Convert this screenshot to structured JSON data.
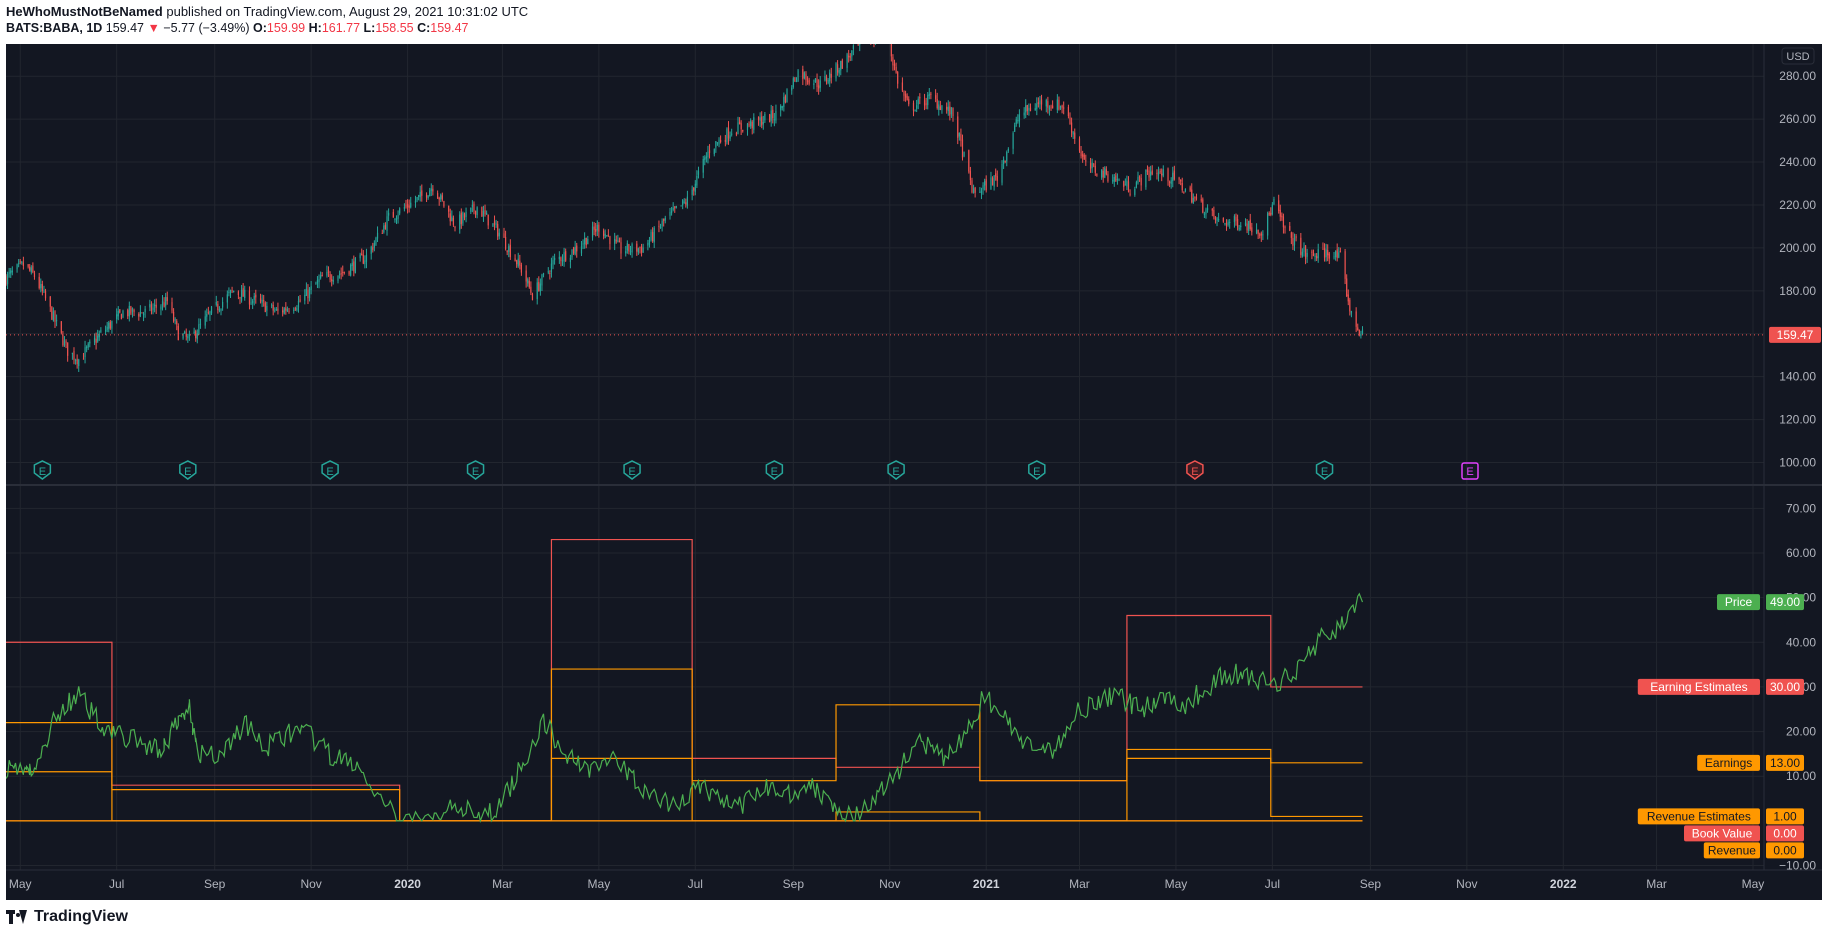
{
  "header": {
    "author": "HeWhoMustNotBeNamed",
    "published": "published on TradingView.com, August 29, 2021 10:31:02 UTC"
  },
  "symbol": {
    "ticker": "BATS:BABA, 1D",
    "price": "159.47",
    "change": "−5.77 (−3.49%)",
    "open_label": "O:",
    "open": "159.99",
    "high_label": "H:",
    "high": "161.77",
    "low_label": "L:",
    "low": "158.55",
    "close_label": "C:",
    "close": "159.47"
  },
  "footer": {
    "brand": "TradingView"
  },
  "colors": {
    "background": "#131722",
    "grid": "#22262f",
    "up": "#26a69a",
    "down": "#ef5350",
    "price_line": "#4caf50",
    "earning_estimates": "#f05350",
    "earnings": "#ff9800",
    "revenue_estimates": "#ff9800",
    "book_value": "#f05350",
    "revenue": "#ff9800"
  },
  "chart_data": [
    {
      "type": "candlestick",
      "currency": "USD",
      "ylim": [
        90,
        295
      ],
      "y_ticks": [
        "100.00",
        "120.00",
        "140.00",
        "160.00",
        "180.00",
        "200.00",
        "220.00",
        "240.00",
        "260.00",
        "280.00"
      ],
      "y_tick_values": [
        100,
        120,
        140,
        160,
        180,
        200,
        220,
        240,
        260,
        280
      ],
      "last_price": 159.47,
      "last_price_label": "159.47",
      "price_path_points": [
        [
          "2019-04-22",
          186
        ],
        [
          "2019-05-03",
          192
        ],
        [
          "2019-05-10",
          187
        ],
        [
          "2019-05-17",
          176
        ],
        [
          "2019-05-31",
          152
        ],
        [
          "2019-06-07",
          148
        ],
        [
          "2019-06-21",
          160
        ],
        [
          "2019-07-05",
          170
        ],
        [
          "2019-07-19",
          170
        ],
        [
          "2019-08-02",
          175
        ],
        [
          "2019-08-09",
          160
        ],
        [
          "2019-08-16",
          157
        ],
        [
          "2019-08-30",
          170
        ],
        [
          "2019-09-13",
          180
        ],
        [
          "2019-09-27",
          175
        ],
        [
          "2019-10-11",
          170
        ],
        [
          "2019-10-25",
          175
        ],
        [
          "2019-11-08",
          186
        ],
        [
          "2019-11-22",
          189
        ],
        [
          "2019-12-06",
          196
        ],
        [
          "2019-12-20",
          214
        ],
        [
          "2020-01-10",
          224
        ],
        [
          "2020-01-17",
          229
        ],
        [
          "2020-01-31",
          211
        ],
        [
          "2020-02-14",
          219
        ],
        [
          "2020-02-28",
          207
        ],
        [
          "2020-03-13",
          190
        ],
        [
          "2020-03-20",
          178
        ],
        [
          "2020-04-03",
          194
        ],
        [
          "2020-04-17",
          200
        ],
        [
          "2020-05-01",
          210
        ],
        [
          "2020-05-15",
          199
        ],
        [
          "2020-05-29",
          200
        ],
        [
          "2020-06-12",
          213
        ],
        [
          "2020-06-26",
          222
        ],
        [
          "2020-07-10",
          246
        ],
        [
          "2020-07-24",
          255
        ],
        [
          "2020-08-07",
          258
        ],
        [
          "2020-08-21",
          262
        ],
        [
          "2020-09-04",
          282
        ],
        [
          "2020-09-18",
          276
        ],
        [
          "2020-10-02",
          286
        ],
        [
          "2020-10-16",
          297
        ],
        [
          "2020-10-30",
          299
        ],
        [
          "2020-11-06",
          278
        ],
        [
          "2020-11-13",
          265
        ],
        [
          "2020-11-27",
          270
        ],
        [
          "2020-12-11",
          262
        ],
        [
          "2020-12-24",
          225
        ],
        [
          "2021-01-08",
          233
        ],
        [
          "2021-01-22",
          262
        ],
        [
          "2021-02-05",
          268
        ],
        [
          "2021-02-19",
          266
        ],
        [
          "2021-03-05",
          238
        ],
        [
          "2021-03-19",
          234
        ],
        [
          "2021-04-02",
          228
        ],
        [
          "2021-04-16",
          236
        ],
        [
          "2021-04-30",
          232
        ],
        [
          "2021-05-14",
          222
        ],
        [
          "2021-05-28",
          212
        ],
        [
          "2021-06-11",
          212
        ],
        [
          "2021-06-25",
          208
        ],
        [
          "2021-07-02",
          221
        ],
        [
          "2021-07-09",
          208
        ],
        [
          "2021-07-23",
          196
        ],
        [
          "2021-08-06",
          198
        ],
        [
          "2021-08-13",
          195
        ],
        [
          "2021-08-20",
          168
        ],
        [
          "2021-08-27",
          159
        ]
      ],
      "earnings_events": [
        {
          "date": "2019-05-15",
          "kind": "past"
        },
        {
          "date": "2019-08-15",
          "kind": "past"
        },
        {
          "date": "2019-11-13",
          "kind": "past"
        },
        {
          "date": "2020-02-13",
          "kind": "past"
        },
        {
          "date": "2020-05-22",
          "kind": "past"
        },
        {
          "date": "2020-08-20",
          "kind": "past"
        },
        {
          "date": "2020-11-05",
          "kind": "past"
        },
        {
          "date": "2021-02-02",
          "kind": "past"
        },
        {
          "date": "2021-05-13",
          "kind": "miss"
        },
        {
          "date": "2021-08-03",
          "kind": "past"
        },
        {
          "date": "2021-11-03",
          "kind": "future"
        }
      ],
      "earnings_marker_label": "E"
    },
    {
      "type": "line",
      "ylim": [
        -11,
        75
      ],
      "y_ticks": [
        "−10.00",
        "10.00",
        "20.00",
        "30.00",
        "40.00",
        "50.00",
        "60.00",
        "70.00"
      ],
      "y_tick_values": [
        -10,
        10,
        20,
        30,
        40,
        50,
        60,
        70
      ],
      "x_labels": [
        "May",
        "Jul",
        "Sep",
        "Nov",
        "2020",
        "Mar",
        "May",
        "Jul",
        "Sep",
        "Nov",
        "2021",
        "Mar",
        "May",
        "Jul",
        "Sep",
        "Nov",
        "2022",
        "Mar",
        "May"
      ],
      "x_label_dates": [
        "2019-05-01",
        "2019-07-01",
        "2019-09-01",
        "2019-11-01",
        "2020-01-01",
        "2020-03-01",
        "2020-05-01",
        "2020-07-01",
        "2020-09-01",
        "2020-11-01",
        "2021-01-01",
        "2021-03-01",
        "2021-05-01",
        "2021-07-01",
        "2021-09-01",
        "2021-11-01",
        "2022-01-01",
        "2022-03-01",
        "2022-05-01"
      ],
      "series": [
        {
          "name": "Earning Estimates",
          "label_value": "30.00",
          "steps": [
            [
              "2019-04-22",
              40
            ],
            [
              "2019-06-28",
              8
            ],
            [
              "2019-12-27",
              0
            ],
            [
              "2020-04-01",
              63
            ],
            [
              "2020-06-29",
              14
            ],
            [
              "2020-09-28",
              12
            ],
            [
              "2020-12-28",
              9
            ],
            [
              "2021-03-31",
              46
            ],
            [
              "2021-06-30",
              30
            ],
            [
              "2021-08-27",
              30
            ]
          ]
        },
        {
          "name": "Earnings",
          "label_value": "13.00",
          "steps": [
            [
              "2019-04-22",
              11
            ],
            [
              "2019-06-28",
              7
            ],
            [
              "2019-12-27",
              0
            ],
            [
              "2020-04-01",
              34
            ],
            [
              "2020-06-29",
              9
            ],
            [
              "2020-09-28",
              26
            ],
            [
              "2020-12-28",
              9
            ],
            [
              "2021-03-31",
              16
            ],
            [
              "2021-06-30",
              13
            ],
            [
              "2021-08-27",
              13
            ]
          ]
        },
        {
          "name": "Revenue Estimates",
          "label_value": "1.00",
          "steps": [
            [
              "2019-04-22",
              22
            ],
            [
              "2019-06-28",
              0
            ],
            [
              "2020-04-01",
              14
            ],
            [
              "2020-06-29",
              0
            ],
            [
              "2020-09-28",
              2
            ],
            [
              "2020-12-28",
              0
            ],
            [
              "2021-03-31",
              14
            ],
            [
              "2021-06-30",
              1
            ],
            [
              "2021-08-27",
              1
            ]
          ]
        },
        {
          "name": "Book Value",
          "label_value": "0.00",
          "steps": [
            [
              "2019-04-22",
              0
            ],
            [
              "2021-08-27",
              0
            ]
          ]
        },
        {
          "name": "Revenue",
          "label_value": "0.00",
          "steps": [
            [
              "2019-04-22",
              0
            ],
            [
              "2021-08-27",
              0
            ]
          ]
        },
        {
          "name": "Price",
          "label_value": "49.00",
          "points": [
            [
              "2019-04-22",
              12
            ],
            [
              "2019-05-03",
              12
            ],
            [
              "2019-05-10",
              10
            ],
            [
              "2019-05-24",
              24
            ],
            [
              "2019-06-07",
              28
            ],
            [
              "2019-06-21",
              22
            ],
            [
              "2019-07-05",
              19
            ],
            [
              "2019-07-19",
              17
            ],
            [
              "2019-07-31",
              16
            ],
            [
              "2019-08-09",
              22
            ],
            [
              "2019-08-16",
              26
            ],
            [
              "2019-08-23",
              15
            ],
            [
              "2019-09-06",
              15
            ],
            [
              "2019-09-20",
              22
            ],
            [
              "2019-10-04",
              16
            ],
            [
              "2019-10-18",
              20
            ],
            [
              "2019-11-01",
              19
            ],
            [
              "2019-11-15",
              14
            ],
            [
              "2019-11-29",
              13
            ],
            [
              "2019-12-13",
              5
            ],
            [
              "2019-12-27",
              0
            ],
            [
              "2020-01-17",
              0
            ],
            [
              "2020-01-31",
              5
            ],
            [
              "2020-02-14",
              0
            ],
            [
              "2020-02-28",
              3
            ],
            [
              "2020-03-13",
              12
            ],
            [
              "2020-03-27",
              22
            ],
            [
              "2020-04-10",
              15
            ],
            [
              "2020-04-24",
              12
            ],
            [
              "2020-05-08",
              14
            ],
            [
              "2020-05-22",
              10
            ],
            [
              "2020-06-05",
              5
            ],
            [
              "2020-06-19",
              3
            ],
            [
              "2020-07-03",
              8
            ],
            [
              "2020-07-17",
              5
            ],
            [
              "2020-07-31",
              3
            ],
            [
              "2020-08-14",
              8
            ],
            [
              "2020-08-28",
              6
            ],
            [
              "2020-09-11",
              8
            ],
            [
              "2020-09-25",
              5
            ],
            [
              "2020-10-09",
              0
            ],
            [
              "2020-10-23",
              5
            ],
            [
              "2020-11-06",
              11
            ],
            [
              "2020-11-20",
              18
            ],
            [
              "2020-12-04",
              14
            ],
            [
              "2020-12-18",
              18
            ],
            [
              "2020-12-31",
              28
            ],
            [
              "2021-01-15",
              22
            ],
            [
              "2021-01-29",
              16
            ],
            [
              "2021-02-12",
              15
            ],
            [
              "2021-02-26",
              24
            ],
            [
              "2021-03-12",
              27
            ],
            [
              "2021-03-26",
              28
            ],
            [
              "2021-04-09",
              25
            ],
            [
              "2021-04-23",
              28
            ],
            [
              "2021-05-07",
              26
            ],
            [
              "2021-05-21",
              30
            ],
            [
              "2021-06-04",
              33
            ],
            [
              "2021-06-18",
              32
            ],
            [
              "2021-07-02",
              30
            ],
            [
              "2021-07-16",
              34
            ],
            [
              "2021-07-30",
              40
            ],
            [
              "2021-08-13",
              44
            ],
            [
              "2021-08-27",
              49
            ]
          ]
        }
      ]
    }
  ]
}
